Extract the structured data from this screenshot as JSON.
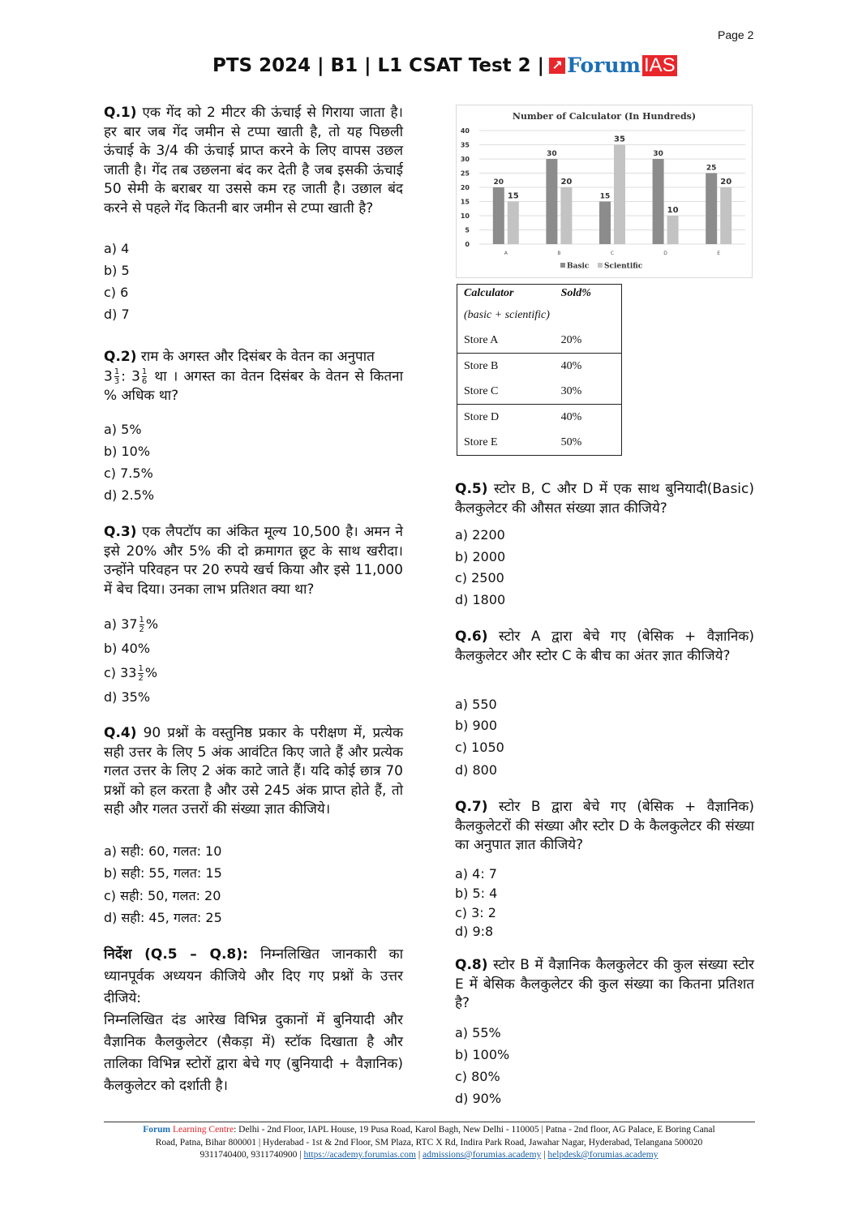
{
  "header": {
    "page_label": "Page 2",
    "title": "PTS 2024 | B1 | L1 CSAT Test 2 |",
    "logo": {
      "arrow": "↗",
      "forum": "Forum",
      "ias": "IAS"
    }
  },
  "colors": {
    "logo_red": "#e8262b",
    "logo_blue": "#1b6fb5",
    "basic_bar": "#8c8c8c",
    "scientific_bar": "#c3c3c3"
  },
  "questions_left": [
    {
      "num": "Q.1)",
      "text": "एक गेंद को 2 मीटर की ऊंचाई से गिराया जाता है। हर बार जब गेंद जमीन से टप्पा खाती है, तो यह पिछली ऊंचाई के 3/4 की ऊंचाई प्राप्त करने के लिए वापस उछल जाती है। गेंद तब उछलना बंद कर देती है जब इसकी ऊंचाई 50 सेमी के बराबर या उससे कम रह जाती है। उछाल बंद करने से पहले गेंद कितनी बार जमीन से टप्पा खाती है?",
      "options": [
        {
          "text": "a) 4"
        },
        {
          "text": "b) 5"
        },
        {
          "text": "c) 6"
        },
        {
          "text": "d) 7"
        }
      ]
    },
    {
      "num": "Q.2)",
      "text_parts": [
        "3",
        "1",
        "3",
        ": 3",
        "1",
        "6",
        "था । अगस्त का वेतन दिसंबर के वेतन से कितना % अधिक था?"
      ],
      "text": "राम के अगस्त और दिसंबर के वेतन का अनुपात",
      "options": [
        {
          "text": "a) 5%"
        },
        {
          "text": "b) 10%"
        },
        {
          "text": "c) 7.5%"
        },
        {
          "text": "d) 2.5%"
        }
      ]
    },
    {
      "num": "Q.3)",
      "text": " एक लैपटॉप का अंकित मूल्य 10,500 है। अमन ने इसे  20% और 5% की दो क्रमागत छूट के साथ खरीदा। उन्होंने परिवहन पर 20 रुपये खर्च किया और इसे 11,000 में बेच दिया। उनका लाभ प्रतिशत क्या था?",
      "options": [
        {
          "text": "a) 37",
          "num": "1",
          "den": "2",
          "suffix": "%"
        },
        {
          "text": "b) 40%"
        },
        {
          "text": "c) 33",
          "num": "1",
          "den": "2",
          "suffix": "%"
        },
        {
          "text": "d) 35%"
        }
      ]
    },
    {
      "num": "Q.4)",
      "text": "90 प्रश्नों के वस्तुनिष्ठ प्रकार के परीक्षण में, प्रत्येक सही उत्तर के लिए 5 अंक आवंटित किए जाते हैं और प्रत्येक गलत उत्तर के लिए 2 अंक काटे जाते हैं। यदि कोई छात्र 70 प्रश्नों को हल करता है और उसे 245 अंक प्राप्त होते हैं, तो सही और गलत उत्तरों की संख्या ज्ञात कीजिये।",
      "options": [
        {
          "text": "a) सही: 60, गलत: 10"
        },
        {
          "text": "b) सही: 55, गलत: 15"
        },
        {
          "text": "c) सही: 50, गलत: 20"
        },
        {
          "text": "d) सही: 45, गलत: 25"
        }
      ]
    }
  ],
  "directions": {
    "label": "निर्देश (Q.5 – Q.8):",
    "text": "निम्नलिखित जानकारी का ध्यानपूर्वक अध्ययन कीजिये और दिए गए प्रश्नों के उत्तर दीजिये:",
    "text2": "निम्नलिखित दंड आरेख विभिन्न दुकानों में बुनियादी और वैज्ञानिक कैलकुलेटर (सैकड़ा में) स्टॉक दिखाता है और तालिका विभिन्न स्टोरों द्वारा बेचे गए (बुनियादी + वैज्ञानिक) कैलकुलेटर को दर्शाती है।"
  },
  "chart_data": {
    "type": "bar",
    "title": "Number of Calculator (In Hundreds)",
    "categories": [
      "A",
      "B",
      "C",
      "D",
      "E"
    ],
    "series": [
      {
        "name": "Basic",
        "values": [
          20,
          30,
          15,
          30,
          25
        ]
      },
      {
        "name": "Scientific",
        "values": [
          15,
          20,
          35,
          10,
          20
        ]
      }
    ],
    "yticks": [
      0,
      5,
      10,
      15,
      20,
      25,
      30,
      35,
      40
    ],
    "ylim": [
      0,
      40
    ],
    "grid": true,
    "legend": "bottom",
    "data_labels": true
  },
  "table": {
    "header": [
      "Calculator",
      "Sold%"
    ],
    "subheader": "(basic + scientific)",
    "rows": [
      [
        "Store A",
        "20%"
      ],
      [
        "Store B",
        "40%"
      ],
      [
        "Store C",
        "30%"
      ],
      [
        "Store D",
        "40%"
      ],
      [
        "Store E",
        "50%"
      ]
    ]
  },
  "questions_right": [
    {
      "num": "Q.5)",
      "text": "स्टोर B, C और D में एक साथ बुनियादी(Basic) कैलकुलेटर की औसत संख्या ज्ञात कीजिये?",
      "options": [
        {
          "text": "a) 2200"
        },
        {
          "text": "b) 2000"
        },
        {
          "text": "c) 2500"
        },
        {
          "text": "d) 1800"
        }
      ]
    },
    {
      "num": "Q.6)",
      "text": "स्टोर A द्वारा बेचे गए (बेसिक + वैज्ञानिक) कैलकुलेटर और स्टोर C के बीच का अंतर ज्ञात कीजिये?",
      "options": [
        {
          "text": "a) 550"
        },
        {
          "text": "b) 900"
        },
        {
          "text": "c) 1050"
        },
        {
          "text": "d) 800"
        }
      ]
    },
    {
      "num": "Q.7)",
      "text": "स्टोर B द्वारा बेचे गए (बेसिक + वैज्ञानिक) कैलकुलेटरों की संख्या और स्टोर D के कैलकुलेटर की संख्या का अनुपात ज्ञात कीजिये?",
      "options": [
        {
          "text": "a) 4: 7"
        },
        {
          "text": "b) 5: 4"
        },
        {
          "text": "c) 3: 2"
        },
        {
          "text": "d) 9:8"
        }
      ]
    },
    {
      "num": "Q.8)",
      "text": "स्टोर B में वैज्ञानिक कैलकुलेटर की कुल संख्या स्टोर E में बेसिक कैलकुलेटर की कुल संख्या का कितना प्रतिशत है?",
      "options": [
        {
          "text": "a) 55%"
        },
        {
          "text": "b) 100%"
        },
        {
          "text": "c) 80%"
        },
        {
          "text": "d) 90%"
        }
      ]
    }
  ],
  "footer": {
    "brand1": "Forum",
    "brand2": "Learning Centre",
    "sep": ":",
    "line1": "Delhi - 2nd Floor, IAPL House, 19 Pusa Road, Karol Bagh, New Delhi - 110005  | Patna - 2nd floor, AG Palace, E Boring Canal",
    "line2": "Road, Patna, Bihar 800001  | Hyderabad - 1st & 2nd Floor, SM Plaza, RTC X Rd, Indira Park Road, Jawahar Nagar, Hyderabad, Telangana 500020",
    "phones": "9311740400, 9311740900 |",
    "link1": "https://academy.forumias.com",
    "link2": "admissions@forumias.academy",
    "link3": "helpdesk@forumias.academy"
  }
}
